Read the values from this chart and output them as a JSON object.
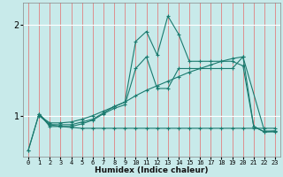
{
  "xlabel": "Humidex (Indice chaleur)",
  "bg_color": "#c8eaea",
  "grid_color_v": "#e08080",
  "grid_color_h": "#ffffff",
  "line_color": "#1a7a6e",
  "xlim": [
    -0.5,
    23.5
  ],
  "ylim": [
    0.55,
    2.25
  ],
  "yticks": [
    1,
    2
  ],
  "xticks": [
    0,
    1,
    2,
    3,
    4,
    5,
    6,
    7,
    8,
    9,
    10,
    11,
    12,
    13,
    14,
    15,
    16,
    17,
    18,
    19,
    20,
    21,
    22,
    23
  ],
  "line1_x": [
    0,
    1,
    2,
    3,
    4,
    5,
    6,
    7,
    8,
    9,
    10,
    11,
    12,
    13,
    14,
    15,
    16,
    17,
    18,
    19,
    20,
    21,
    22,
    23
  ],
  "line1_y": [
    0.62,
    1.02,
    0.9,
    0.9,
    0.9,
    0.93,
    0.96,
    1.03,
    1.1,
    1.15,
    1.82,
    1.93,
    1.67,
    2.1,
    1.9,
    1.6,
    1.6,
    1.6,
    1.6,
    1.6,
    1.55,
    0.88,
    0.82,
    0.83
  ],
  "line2_x": [
    0,
    1,
    2,
    3,
    4,
    5,
    6,
    7,
    8,
    9,
    10,
    11,
    12,
    13,
    14,
    15,
    16,
    17,
    18,
    19,
    20,
    21,
    22,
    23
  ],
  "line2_y": [
    0.62,
    1.02,
    0.88,
    0.88,
    0.88,
    0.91,
    0.95,
    1.02,
    1.08,
    1.12,
    1.52,
    1.65,
    1.3,
    1.3,
    1.52,
    1.52,
    1.52,
    1.52,
    1.52,
    1.52,
    1.65,
    0.88,
    0.82,
    0.82
  ],
  "line3_x": [
    1,
    2,
    3,
    4,
    5,
    6,
    7,
    8,
    9,
    10,
    11,
    12,
    13,
    14,
    15,
    16,
    17,
    18,
    19,
    20,
    22,
    23
  ],
  "line3_y": [
    1.0,
    0.92,
    0.92,
    0.93,
    0.96,
    1.0,
    1.05,
    1.1,
    1.15,
    1.22,
    1.28,
    1.33,
    1.38,
    1.43,
    1.48,
    1.52,
    1.56,
    1.6,
    1.63,
    1.65,
    0.83,
    0.83
  ],
  "line4_x": [
    1,
    2,
    3,
    4,
    5,
    6,
    7,
    8,
    9,
    10,
    11,
    12,
    13,
    14,
    15,
    16,
    17,
    18,
    19,
    20,
    21,
    22,
    23
  ],
  "line4_y": [
    1.0,
    0.9,
    0.88,
    0.87,
    0.86,
    0.86,
    0.86,
    0.86,
    0.86,
    0.86,
    0.86,
    0.86,
    0.86,
    0.86,
    0.86,
    0.86,
    0.86,
    0.86,
    0.86,
    0.86,
    0.86,
    0.86,
    0.86
  ]
}
